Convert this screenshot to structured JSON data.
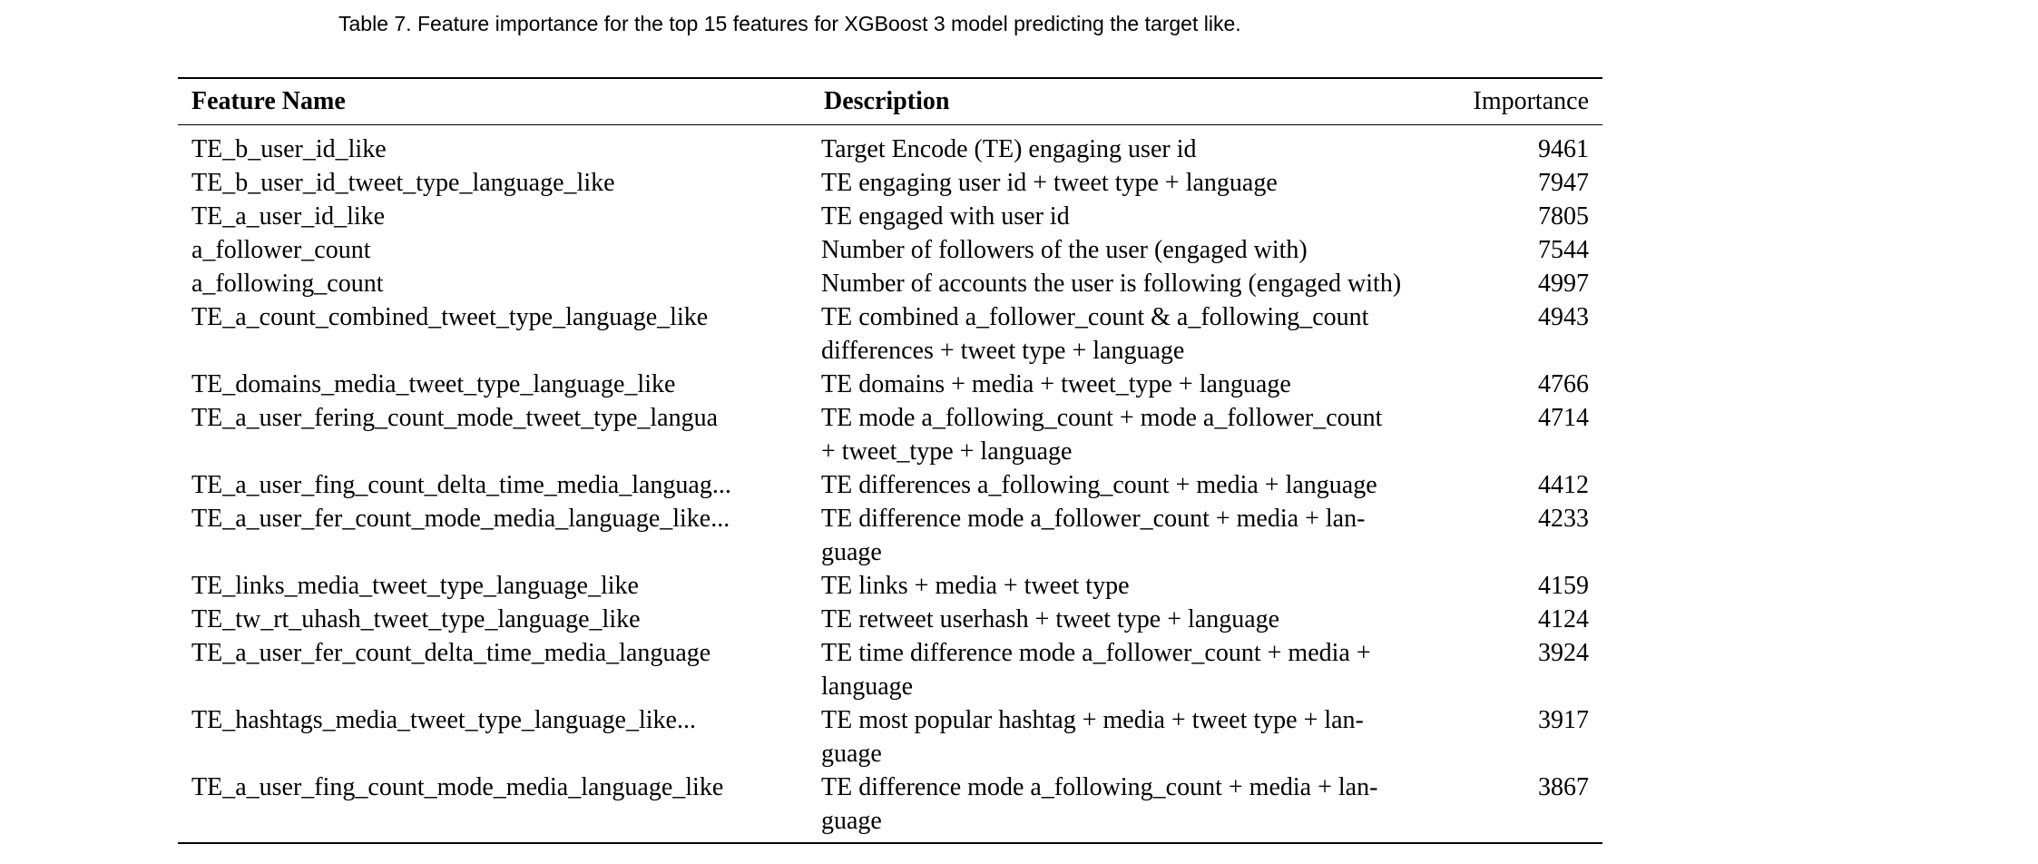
{
  "caption": "Table 7.  Feature importance for the top 15 features for XGBoost 3 model predicting the target like.",
  "table": {
    "headers": {
      "name": "Feature Name",
      "description": "Description",
      "importance": "Importance"
    },
    "rows": [
      {
        "name": "TE_b_user_id_like",
        "description": "Target Encode (TE) engaging user id",
        "importance": "9461"
      },
      {
        "name": "TE_b_user_id_tweet_type_language_like",
        "description": "TE engaging user id + tweet type + language",
        "importance": "7947"
      },
      {
        "name": "TE_a_user_id_like",
        "description": "TE engaged with user id",
        "importance": "7805"
      },
      {
        "name": "a_follower_count",
        "description": "Number of followers of the user (engaged with)",
        "importance": "7544"
      },
      {
        "name": "a_following_count",
        "description": "Number of accounts the user is following (engaged with)",
        "importance": "4997"
      },
      {
        "name": "TE_a_count_combined_tweet_type_language_like",
        "description": "TE combined a_follower_count & a_following_count\ndifferences + tweet type + language",
        "importance": "4943"
      },
      {
        "name": "TE_domains_media_tweet_type_language_like",
        "description": "TE domains + media + tweet_type + language",
        "importance": "4766"
      },
      {
        "name": "TE_a_user_fering_count_mode_tweet_type_langua",
        "description": "TE mode a_following_count + mode a_follower_count\n+ tweet_type + language",
        "importance": "4714"
      },
      {
        "name": "TE_a_user_fing_count_delta_time_media_languag...",
        "description": "TE differences a_following_count + media + language",
        "importance": "4412"
      },
      {
        "name": "TE_a_user_fer_count_mode_media_language_like...",
        "description": "TE difference mode a_follower_count + media + lan-\nguage",
        "importance": "4233"
      },
      {
        "name": "TE_links_media_tweet_type_language_like",
        "description": "TE links + media + tweet type",
        "importance": "4159"
      },
      {
        "name": "TE_tw_rt_uhash_tweet_type_language_like",
        "description": "TE retweet userhash + tweet type + language",
        "importance": "4124"
      },
      {
        "name": "TE_a_user_fer_count_delta_time_media_language",
        "description": "TE time difference mode a_follower_count + media +\nlanguage",
        "importance": "3924"
      },
      {
        "name": "TE_hashtags_media_tweet_type_language_like...",
        "description": "TE most popular hashtag + media + tweet type + lan-\nguage",
        "importance": "3917"
      },
      {
        "name": "TE_a_user_fing_count_mode_media_language_like",
        "description": "TE difference mode a_following_count + media + lan-\nguage",
        "importance": "3867"
      }
    ]
  }
}
